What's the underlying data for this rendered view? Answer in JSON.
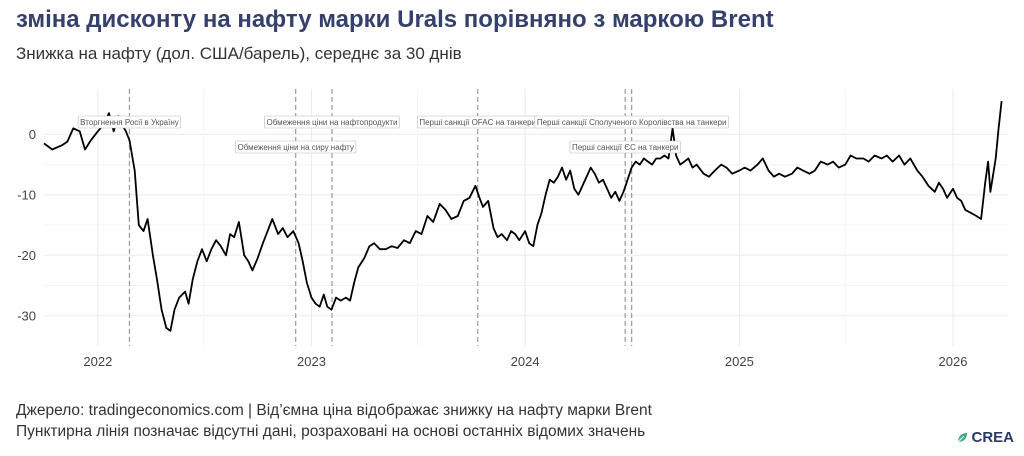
{
  "title": "зміна дисконту на нафту марки Urals порівняно з маркою Brent",
  "subtitle": "Знижка на нафту (дол. США/барель), середнє за 30 днів",
  "footer": {
    "line1": "Джерело: tradingeconomics.com | Від’ємна ціна відображає знижку на нафту марки Brent",
    "line2": "Пунктирна лінія позначає відсутні дані, розраховані на основі останніх відомих значень"
  },
  "logo": {
    "text": "CREA",
    "icon": "crea-leaf-icon",
    "color": "#2a3a66"
  },
  "colors": {
    "title": "#35416b",
    "line": "#000000",
    "grid": "#ebebeb",
    "event": "#9a9a9a"
  },
  "chart_data": {
    "type": "line",
    "title": "зміна дисконту на нафту марки Urals порівняно з маркою Brent",
    "xlabel": "",
    "ylabel": "",
    "x_ticks": [
      "2022",
      "2023",
      "2024",
      "2025",
      "2026"
    ],
    "y_ticks": [
      0,
      -10,
      -20,
      -30
    ],
    "xlim": [
      "2021-10-01",
      "2026-04-05"
    ],
    "ylim": [
      -35,
      7.5
    ],
    "grid": true,
    "series": [
      {
        "points": [
          [
            "2021-10-01",
            -1.5
          ],
          [
            "2021-10-15",
            -2.5
          ],
          [
            "2021-11-01",
            -1.8
          ],
          [
            "2021-11-10",
            -1.2
          ],
          [
            "2021-11-20",
            1.0
          ],
          [
            "2021-12-01",
            0.5
          ],
          [
            "2021-12-10",
            -2.5
          ],
          [
            "2021-12-20",
            -1.0
          ],
          [
            "2022-01-01",
            0.5
          ],
          [
            "2022-01-10",
            1.5
          ],
          [
            "2022-01-20",
            3.5
          ],
          [
            "2022-01-28",
            0.5
          ],
          [
            "2022-02-05",
            3.0
          ],
          [
            "2022-02-12",
            1.5
          ],
          [
            "2022-02-18",
            0.5
          ],
          [
            "2022-02-24",
            -1.0
          ],
          [
            "2022-03-05",
            -6.0
          ],
          [
            "2022-03-12",
            -15.0
          ],
          [
            "2022-03-20",
            -16.0
          ],
          [
            "2022-03-27",
            -14.0
          ],
          [
            "2022-04-05",
            -20.0
          ],
          [
            "2022-04-12",
            -24.0
          ],
          [
            "2022-04-20",
            -29.0
          ],
          [
            "2022-04-28",
            -32.0
          ],
          [
            "2022-05-05",
            -32.5
          ],
          [
            "2022-05-12",
            -29.0
          ],
          [
            "2022-05-20",
            -27.0
          ],
          [
            "2022-05-30",
            -26.0
          ],
          [
            "2022-06-05",
            -28.0
          ],
          [
            "2022-06-12",
            -24.0
          ],
          [
            "2022-06-20",
            -21.0
          ],
          [
            "2022-06-28",
            -19.0
          ],
          [
            "2022-07-06",
            -21.0
          ],
          [
            "2022-07-14",
            -19.0
          ],
          [
            "2022-07-22",
            -17.5
          ],
          [
            "2022-07-30",
            -18.5
          ],
          [
            "2022-08-08",
            -20.0
          ],
          [
            "2022-08-15",
            -16.5
          ],
          [
            "2022-08-22",
            -17.0
          ],
          [
            "2022-08-30",
            -14.5
          ],
          [
            "2022-09-08",
            -20.0
          ],
          [
            "2022-09-15",
            -21.0
          ],
          [
            "2022-09-22",
            -22.5
          ],
          [
            "2022-10-01",
            -20.5
          ],
          [
            "2022-10-10",
            -18.0
          ],
          [
            "2022-10-18",
            -16.0
          ],
          [
            "2022-10-26",
            -14.0
          ],
          [
            "2022-11-05",
            -16.5
          ],
          [
            "2022-11-13",
            -15.5
          ],
          [
            "2022-11-21",
            -17.0
          ],
          [
            "2022-12-01",
            -16.0
          ],
          [
            "2022-12-10",
            -18.0
          ],
          [
            "2022-12-17",
            -21.0
          ],
          [
            "2022-12-24",
            -24.5
          ],
          [
            "2023-01-01",
            -27.0
          ],
          [
            "2023-01-08",
            -28.0
          ],
          [
            "2023-01-15",
            -28.5
          ],
          [
            "2023-01-22",
            -26.5
          ],
          [
            "2023-01-28",
            -28.5
          ],
          [
            "2023-02-04",
            -29.0
          ],
          [
            "2023-02-12",
            -27.0
          ],
          [
            "2023-02-20",
            -27.5
          ],
          [
            "2023-03-01",
            -27.0
          ],
          [
            "2023-03-08",
            -27.5
          ],
          [
            "2023-03-15",
            -24.5
          ],
          [
            "2023-03-22",
            -22.0
          ],
          [
            "2023-04-01",
            -20.5
          ],
          [
            "2023-04-10",
            -18.5
          ],
          [
            "2023-04-18",
            -18.0
          ],
          [
            "2023-04-28",
            -19.0
          ],
          [
            "2023-05-08",
            -19.0
          ],
          [
            "2023-05-18",
            -18.5
          ],
          [
            "2023-05-28",
            -18.8
          ],
          [
            "2023-06-08",
            -17.5
          ],
          [
            "2023-06-18",
            -18.0
          ],
          [
            "2023-06-28",
            -16.0
          ],
          [
            "2023-07-08",
            -16.5
          ],
          [
            "2023-07-18",
            -13.5
          ],
          [
            "2023-07-28",
            -14.5
          ],
          [
            "2023-08-08",
            -11.5
          ],
          [
            "2023-08-18",
            -12.5
          ],
          [
            "2023-08-28",
            -14.0
          ],
          [
            "2023-09-08",
            -13.5
          ],
          [
            "2023-09-18",
            -11.0
          ],
          [
            "2023-09-28",
            -10.5
          ],
          [
            "2023-10-08",
            -8.5
          ],
          [
            "2023-10-15",
            -10.5
          ],
          [
            "2023-10-21",
            -12.0
          ],
          [
            "2023-10-30",
            -11.0
          ],
          [
            "2023-11-08",
            -15.5
          ],
          [
            "2023-11-15",
            -17.0
          ],
          [
            "2023-11-22",
            -16.5
          ],
          [
            "2023-12-01",
            -17.5
          ],
          [
            "2023-12-08",
            -16.0
          ],
          [
            "2023-12-15",
            -16.5
          ],
          [
            "2023-12-22",
            -17.5
          ],
          [
            "2024-01-01",
            -16.0
          ],
          [
            "2024-01-08",
            -18.0
          ],
          [
            "2024-01-15",
            -18.5
          ],
          [
            "2024-01-22",
            -15.0
          ],
          [
            "2024-01-29",
            -13.0
          ],
          [
            "2024-02-05",
            -10.0
          ],
          [
            "2024-02-12",
            -7.5
          ],
          [
            "2024-02-19",
            -8.0
          ],
          [
            "2024-02-26",
            -7.0
          ],
          [
            "2024-03-04",
            -5.5
          ],
          [
            "2024-03-11",
            -7.5
          ],
          [
            "2024-03-18",
            -6.0
          ],
          [
            "2024-03-25",
            -9.0
          ],
          [
            "2024-04-01",
            -10.0
          ],
          [
            "2024-04-08",
            -8.5
          ],
          [
            "2024-04-15",
            -7.0
          ],
          [
            "2024-04-22",
            -5.5
          ],
          [
            "2024-04-29",
            -6.5
          ],
          [
            "2024-05-06",
            -8.0
          ],
          [
            "2024-05-13",
            -7.5
          ],
          [
            "2024-05-20",
            -9.0
          ],
          [
            "2024-05-27",
            -10.5
          ],
          [
            "2024-06-03",
            -9.5
          ],
          [
            "2024-06-10",
            -11.0
          ],
          [
            "2024-06-17",
            -9.5
          ],
          [
            "2024-06-24",
            -7.5
          ],
          [
            "2024-07-01",
            -5.5
          ],
          [
            "2024-07-08",
            -4.5
          ],
          [
            "2024-07-15",
            -5.0
          ],
          [
            "2024-07-22",
            -4.0
          ],
          [
            "2024-07-29",
            -4.5
          ],
          [
            "2024-08-05",
            -5.0
          ],
          [
            "2024-08-12",
            -4.0
          ],
          [
            "2024-08-19",
            -4.0
          ],
          [
            "2024-08-26",
            -3.5
          ],
          [
            "2024-09-02",
            -4.0
          ],
          [
            "2024-09-09",
            1.0
          ],
          [
            "2024-09-15",
            -3.5
          ],
          [
            "2024-09-22",
            -5.0
          ],
          [
            "2024-09-29",
            -4.5
          ],
          [
            "2024-10-06",
            -4.0
          ],
          [
            "2024-10-13",
            -5.5
          ],
          [
            "2024-10-20",
            -5.0
          ],
          [
            "2024-11-01",
            -6.5
          ],
          [
            "2024-11-10",
            -7.0
          ],
          [
            "2024-11-20",
            -6.0
          ],
          [
            "2024-12-01",
            -5.0
          ],
          [
            "2024-12-10",
            -5.5
          ],
          [
            "2024-12-20",
            -6.5
          ],
          [
            "2025-01-01",
            -6.0
          ],
          [
            "2025-01-10",
            -5.5
          ],
          [
            "2025-01-20",
            -6.0
          ],
          [
            "2025-02-01",
            -5.0
          ],
          [
            "2025-02-10",
            -4.0
          ],
          [
            "2025-02-20",
            -6.0
          ],
          [
            "2025-03-01",
            -7.0
          ],
          [
            "2025-03-10",
            -6.5
          ],
          [
            "2025-03-20",
            -7.0
          ],
          [
            "2025-04-01",
            -6.5
          ],
          [
            "2025-04-10",
            -5.5
          ],
          [
            "2025-04-20",
            -6.0
          ],
          [
            "2025-05-01",
            -6.5
          ],
          [
            "2025-05-10",
            -6.0
          ],
          [
            "2025-05-20",
            -4.5
          ],
          [
            "2025-06-01",
            -5.0
          ],
          [
            "2025-06-10",
            -4.5
          ],
          [
            "2025-06-20",
            -5.5
          ],
          [
            "2025-07-01",
            -5.0
          ],
          [
            "2025-07-10",
            -3.5
          ],
          [
            "2025-07-20",
            -4.0
          ],
          [
            "2025-08-01",
            -4.0
          ],
          [
            "2025-08-10",
            -4.5
          ],
          [
            "2025-08-20",
            -3.5
          ],
          [
            "2025-09-01",
            -4.0
          ],
          [
            "2025-09-10",
            -3.5
          ],
          [
            "2025-09-20",
            -4.5
          ],
          [
            "2025-10-01",
            -3.5
          ],
          [
            "2025-10-10",
            -5.0
          ],
          [
            "2025-10-20",
            -4.0
          ],
          [
            "2025-11-01",
            -6.0
          ],
          [
            "2025-11-10",
            -7.0
          ],
          [
            "2025-11-20",
            -8.5
          ],
          [
            "2025-12-01",
            -9.5
          ],
          [
            "2025-12-08",
            -8.0
          ],
          [
            "2025-12-15",
            -9.0
          ],
          [
            "2025-12-22",
            -10.5
          ],
          [
            "2026-01-01",
            -9.0
          ],
          [
            "2026-01-08",
            -10.5
          ],
          [
            "2026-01-15",
            -11.0
          ],
          [
            "2026-01-22",
            -12.5
          ],
          [
            "2026-02-01",
            -13.0
          ],
          [
            "2026-02-10",
            -13.5
          ],
          [
            "2026-02-18",
            -14.0
          ],
          [
            "2026-02-25",
            -8.0
          ],
          [
            "2026-03-02",
            -4.5
          ],
          [
            "2026-03-06",
            -9.5
          ],
          [
            "2026-03-10",
            -7.0
          ],
          [
            "2026-03-15",
            -4.0
          ],
          [
            "2026-03-20",
            1.0
          ],
          [
            "2026-03-25",
            5.5
          ]
        ]
      }
    ],
    "events": [
      {
        "date": "2022-02-24",
        "label": "Вторгнення Росії в Україну"
      },
      {
        "date": "2022-12-05",
        "label": "Обмеження ціни на сиру нафту"
      },
      {
        "date": "2023-02-05",
        "label": "Обмеження ціни на нафтопродукти"
      },
      {
        "date": "2023-10-12",
        "label": "Перші санкції OFAC на танкери"
      },
      {
        "date": "2024-06-20",
        "label": "Перші санкції ЄС на танкери"
      },
      {
        "date": "2024-07-01",
        "label": "Перші санкції Сполученого Королівства на танкери"
      }
    ]
  }
}
